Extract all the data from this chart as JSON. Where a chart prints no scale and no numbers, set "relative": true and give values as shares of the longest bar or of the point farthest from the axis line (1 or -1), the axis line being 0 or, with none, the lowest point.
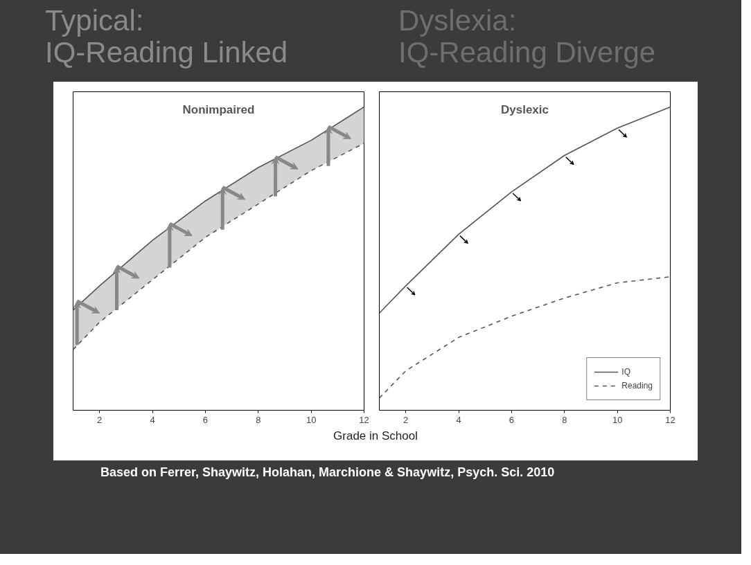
{
  "chart_data": [
    {
      "type": "line",
      "title": "Nonimpaired",
      "annotations": [
        "Typical:\nIQ-Reading Linked"
      ],
      "xlabel": "Grade in School",
      "relative": true,
      "x": [
        1,
        2,
        4,
        6,
        8,
        10,
        12
      ],
      "xlim": [
        1,
        12
      ],
      "xticks": [
        2,
        4,
        6,
        8,
        10,
        12
      ],
      "grid": false,
      "legend": false,
      "series": [
        {
          "color": "#555555",
          "line_style": "solid",
          "values": [
            0.33,
            0.41,
            0.56,
            0.69,
            0.8,
            0.89,
            1.0
          ]
        },
        {
          "color": "#555555",
          "line_style": "dashed",
          "values": [
            0.2,
            0.29,
            0.43,
            0.57,
            0.68,
            0.79,
            0.88
          ],
          "lower": [
            0.2,
            0.29,
            0.43,
            0.57,
            0.68,
            0.79,
            0.88
          ],
          "upper": [
            0.33,
            0.41,
            0.56,
            0.69,
            0.8,
            0.89,
            1.0
          ]
        }
      ]
    },
    {
      "type": "line",
      "title": "Dyslexic",
      "annotations": [
        "Dyslexia:\nIQ-Reading Diverge",
        "Based on Ferrer, Shaywitz, Holahan, Marchione & Shaywitz, Psych. Sci. 2010"
      ],
      "relative": true,
      "x": [
        1,
        2,
        4,
        6,
        8,
        10,
        12
      ],
      "xlim": [
        1,
        12
      ],
      "xticks": [
        2,
        4,
        6,
        8,
        10,
        12
      ],
      "grid": false,
      "legend": "bottom right",
      "series": [
        {
          "name": "IQ",
          "color": "#555555",
          "line_style": "solid",
          "values": [
            0.32,
            0.41,
            0.58,
            0.72,
            0.84,
            0.93,
            1.0
          ]
        },
        {
          "name": "Reading",
          "color": "#555555",
          "line_style": "dashed",
          "values": [
            0.04,
            0.13,
            0.24,
            0.31,
            0.37,
            0.42,
            0.44
          ]
        }
      ]
    }
  ]
}
